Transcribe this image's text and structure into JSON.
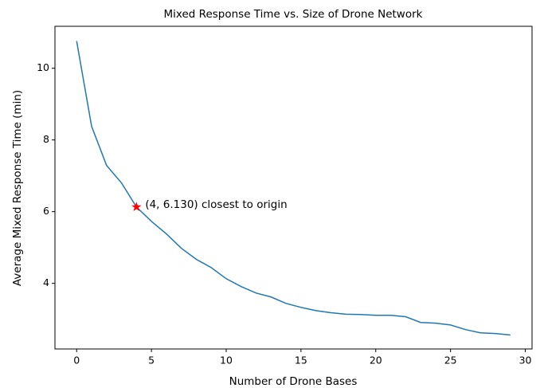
{
  "chart_data": {
    "type": "line",
    "title": "Mixed Response Time vs. Size of Drone Network",
    "x_label": "Number of Drone Bases",
    "y_label": "Average Mixed Response Time (min)",
    "x": [
      0,
      1,
      2,
      3,
      4,
      5,
      6,
      7,
      8,
      9,
      10,
      11,
      12,
      13,
      14,
      15,
      16,
      17,
      18,
      19,
      20,
      21,
      22,
      23,
      24,
      25,
      26,
      27,
      28,
      29
    ],
    "series": [
      {
        "name": "Mixed Response Time",
        "color": "#1f77b4",
        "values": [
          10.76,
          8.38,
          7.29,
          6.8,
          6.13,
          5.73,
          5.38,
          4.98,
          4.67,
          4.44,
          4.13,
          3.91,
          3.73,
          3.62,
          3.44,
          3.33,
          3.24,
          3.18,
          3.14,
          3.13,
          3.11,
          3.11,
          3.07,
          2.91,
          2.89,
          2.84,
          2.71,
          2.62,
          2.6,
          2.56
        ]
      }
    ],
    "highlight": {
      "x": 4,
      "y": 6.13,
      "label": "(4, 6.130) closest to origin",
      "color": "red"
    },
    "xlim": [
      -1.45,
      30.45
    ],
    "ylim": [
      2.17,
      11.17
    ],
    "xticks": [
      0,
      5,
      10,
      15,
      20,
      25,
      30
    ],
    "yticks": [
      4,
      6,
      8,
      10
    ],
    "grid": false
  }
}
